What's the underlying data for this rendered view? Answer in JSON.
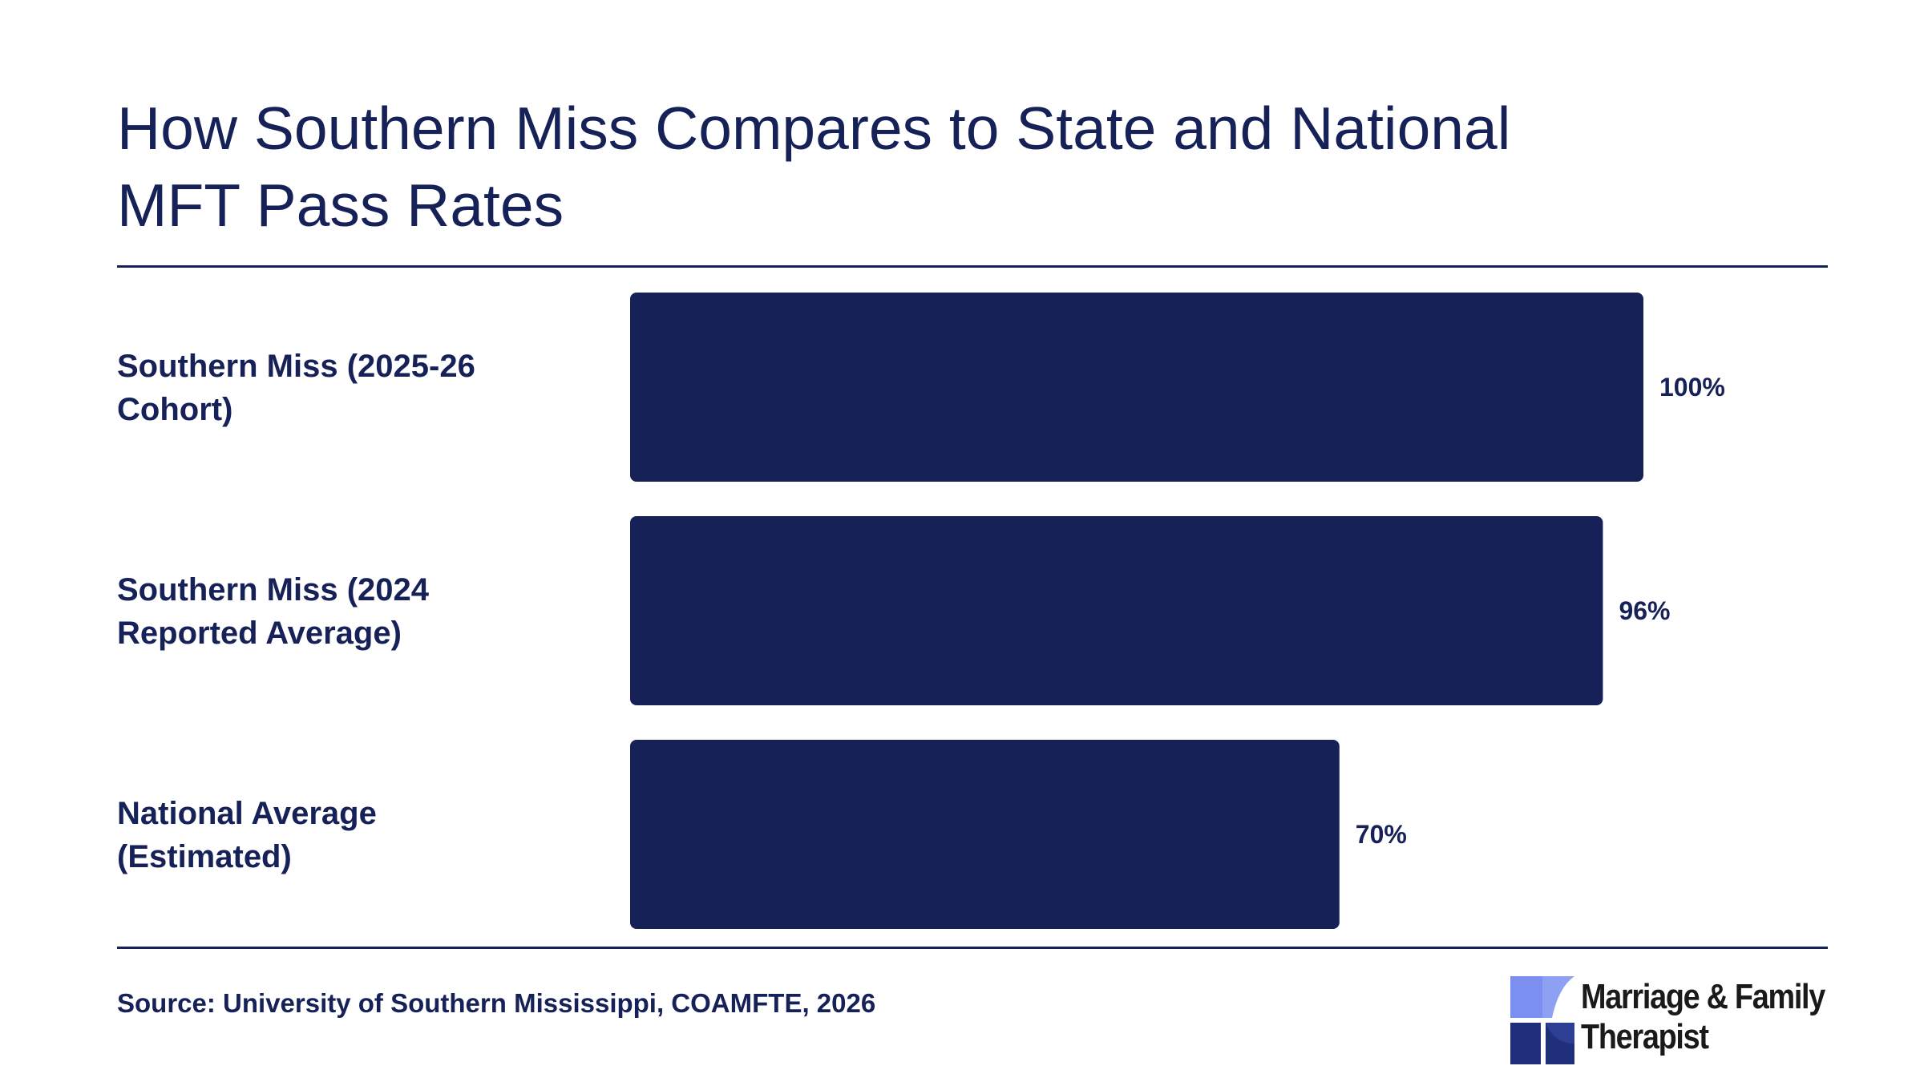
{
  "title_line1": "How Southern Miss Compares to State and National",
  "title_line2": "MFT Pass Rates",
  "source": "Source: University of Southern Mississippi, COAMFTE, 2026",
  "logo": {
    "line1": "Marriage & Family",
    "line2": "Therapist",
    "icon": "pinwheel-logo-icon"
  },
  "colors": {
    "bar": "#162157",
    "text": "#162157",
    "logo_light": "#7a8ff0",
    "logo_dark": "#1f2f7a"
  },
  "chart_data": {
    "type": "bar",
    "orientation": "horizontal",
    "categories": [
      [
        "Southern Miss (2025-26",
        "Cohort)"
      ],
      [
        "Southern Miss (2024",
        "Reported Average)"
      ],
      [
        "National Average",
        "(Estimated)"
      ]
    ],
    "values": [
      100,
      96,
      70
    ],
    "value_labels": [
      "100%",
      "96%",
      "70%"
    ],
    "xlim": [
      0,
      100
    ],
    "grid": false,
    "legend": "none"
  }
}
